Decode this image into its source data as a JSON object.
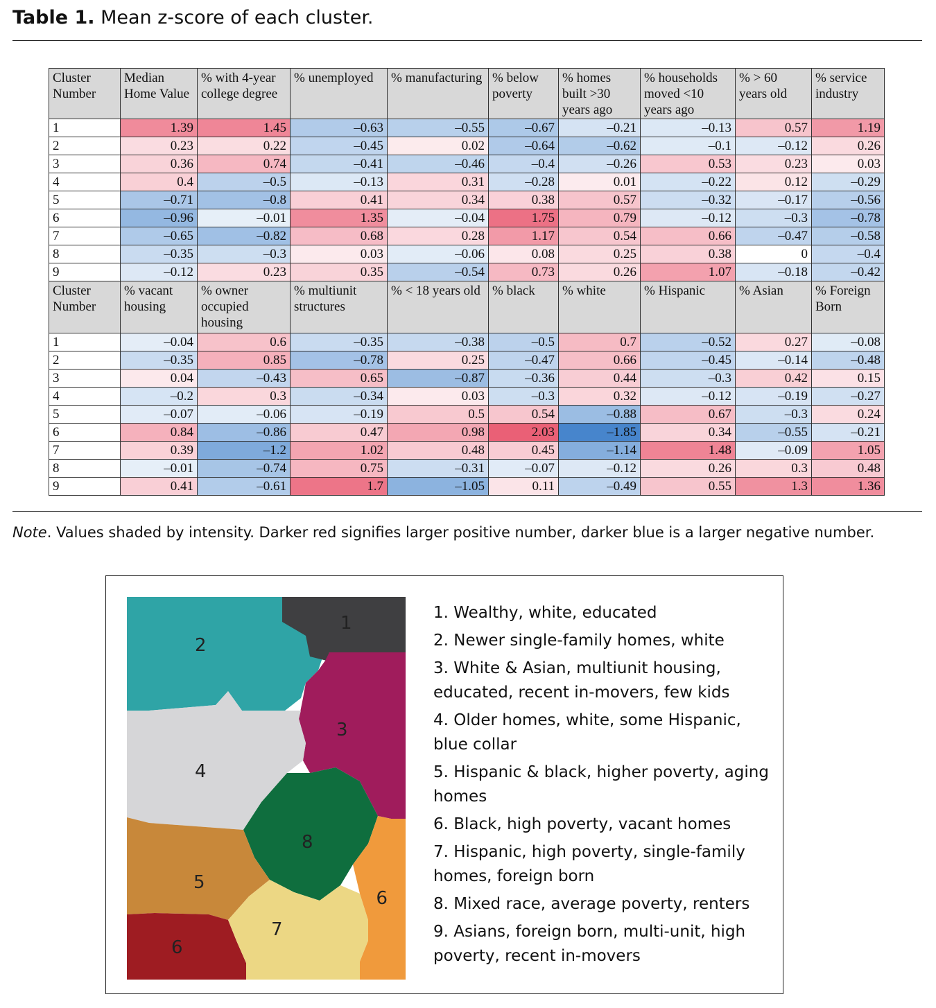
{
  "caption": {
    "label": "Table 1.",
    "title": "Mean z-score of each cluster."
  },
  "table": {
    "blocks": [
      {
        "headers": [
          "Cluster Number",
          "Median Home Value",
          "% with 4-year college degree",
          "% unemployed",
          "% manufacturing",
          "% below poverty",
          "% homes built >30 years ago",
          "% households moved <10 years ago",
          "% > 60 years old",
          "% service industry"
        ],
        "rows": [
          [
            "1",
            "1.39",
            "1.45",
            "–0.63",
            "–0.55",
            "–0.67",
            "–0.21",
            "–0.13",
            "0.57",
            "1.19"
          ],
          [
            "2",
            "0.23",
            "0.22",
            "–0.45",
            "0.02",
            "–0.64",
            "–0.62",
            "–0.1",
            "–0.12",
            "0.26"
          ],
          [
            "3",
            "0.36",
            "0.74",
            "–0.41",
            "–0.46",
            "–0.4",
            "–0.26",
            "0.53",
            "0.23",
            "0.03"
          ],
          [
            "4",
            "0.4",
            "–0.5",
            "–0.13",
            "0.31",
            "–0.28",
            "0.01",
            "–0.22",
            "0.12",
            "–0.29"
          ],
          [
            "5",
            "–0.71",
            "–0.8",
            "0.41",
            "0.34",
            "0.38",
            "0.57",
            "–0.32",
            "–0.17",
            "–0.56"
          ],
          [
            "6",
            "–0.96",
            "–0.01",
            "1.35",
            "–0.04",
            "1.75",
            "0.79",
            "–0.12",
            "–0.3",
            "–0.78"
          ],
          [
            "7",
            "–0.65",
            "–0.82",
            "0.68",
            "0.28",
            "1.17",
            "0.54",
            "0.66",
            "–0.47",
            "–0.58"
          ],
          [
            "8",
            "–0.35",
            "–0.3",
            "0.03",
            "–0.06",
            "0.08",
            "0.25",
            "0.38",
            "0",
            "–0.4"
          ],
          [
            "9",
            "–0.12",
            "0.23",
            "0.35",
            "–0.54",
            "0.73",
            "0.26",
            "1.07",
            "–0.18",
            "–0.42"
          ]
        ]
      },
      {
        "headers": [
          "Cluster Number",
          "% vacant housing",
          "% owner occupied housing",
          "% multiunit structures",
          "% < 18 years old",
          "% black",
          "% white",
          "% Hispanic",
          "% Asian",
          "% Foreign Born"
        ],
        "rows": [
          [
            "1",
            "–0.04",
            "0.6",
            "–0.35",
            "–0.38",
            "–0.5",
            "0.7",
            "–0.52",
            "0.27",
            "–0.08"
          ],
          [
            "2",
            "–0.35",
            "0.85",
            "–0.78",
            "0.25",
            "–0.47",
            "0.66",
            "–0.45",
            "–0.14",
            "–0.48"
          ],
          [
            "3",
            "0.04",
            "–0.43",
            "0.65",
            "–0.87",
            "–0.36",
            "0.44",
            "–0.3",
            "0.42",
            "0.15"
          ],
          [
            "4",
            "–0.2",
            "0.3",
            "–0.34",
            "0.03",
            "–0.3",
            "0.32",
            "–0.12",
            "–0.19",
            "–0.27"
          ],
          [
            "5",
            "–0.07",
            "–0.06",
            "–0.19",
            "0.5",
            "0.54",
            "–0.88",
            "0.67",
            "–0.3",
            "0.24"
          ],
          [
            "6",
            "0.84",
            "–0.86",
            "0.47",
            "0.98",
            "2.03",
            "–1.85",
            "0.34",
            "–0.55",
            "–0.21"
          ],
          [
            "7",
            "0.39",
            "–1.2",
            "1.02",
            "0.48",
            "0.45",
            "–1.14",
            "1.48",
            "–0.09",
            "1.05"
          ],
          [
            "8",
            "–0.01",
            "–0.74",
            "0.75",
            "–0.31",
            "–0.07",
            "–0.12",
            "0.26",
            "0.3",
            "0.48"
          ],
          [
            "9",
            "0.41",
            "–0.61",
            "1.7",
            "–1.05",
            "0.11",
            "–0.49",
            "0.55",
            "1.3",
            "1.36"
          ]
        ]
      }
    ]
  },
  "note": {
    "label": "Note",
    "text": ". Values shaded by intensity. Darker red signifies larger positive number, darker blue is a larger negative number."
  },
  "figure": {
    "map_labels": [
      "1",
      "2",
      "3",
      "4",
      "5",
      "6",
      "7",
      "8",
      "9"
    ],
    "cluster_colors": {
      "1": "#3f3f41",
      "2": "#2fa4a6",
      "3": "#a01c5c",
      "4": "#d6d6d8",
      "5": "#c8883a",
      "6": "#9e1c22",
      "7": "#ecd784",
      "8": "#0f6e3e",
      "9": "#f09a3c"
    },
    "legend": [
      "1. Wealthy, white, educated",
      "2. Newer single-family homes, white",
      "3. White & Asian, multiunit housing, educated, recent in-movers, few kids",
      "4. Older homes, white, some Hispanic, blue collar",
      "5. Hispanic & black, higher poverty, aging homes",
      "6. Black, high poverty, vacant homes",
      "7. Hispanic, high poverty, single-family homes, foreign born",
      "8. Mixed race, average poverty, renters",
      "9. Asians, foreign born, multi-unit, high poverty, recent in-movers"
    ]
  }
}
